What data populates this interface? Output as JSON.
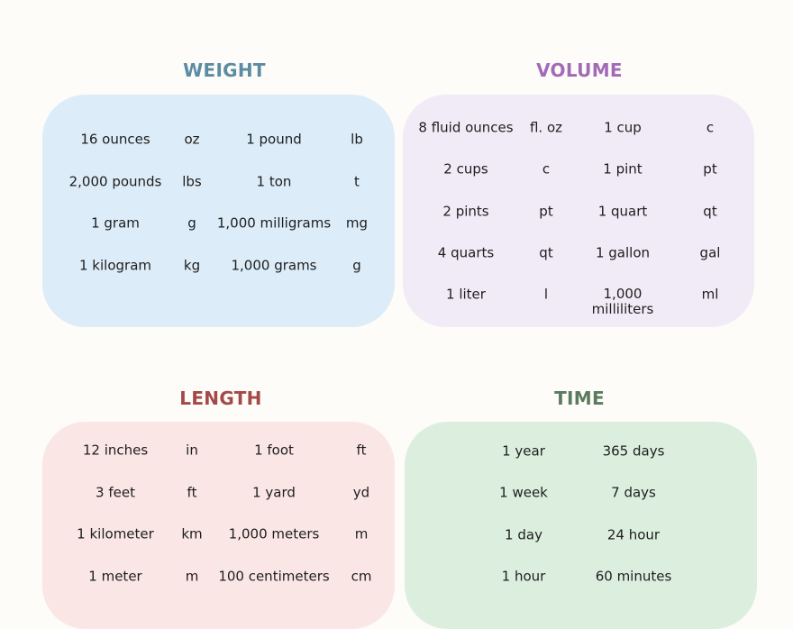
{
  "colors": {
    "background": "#fdfcf8"
  },
  "sections": [
    {
      "title": "WEIGHT",
      "title_color": "#5b8ca3",
      "box_color": "#dcecf8",
      "rows": [
        [
          "16 ounces",
          "oz",
          "1 pound",
          "lb"
        ],
        [
          "2,000 pounds",
          "lbs",
          "1 ton",
          "t"
        ],
        [
          "1 gram",
          "g",
          "1,000 milligrams",
          "mg"
        ],
        [
          "1 kilogram",
          "kg",
          "1,000 grams",
          "g"
        ]
      ]
    },
    {
      "title": "VOLUME",
      "title_color": "#a16bb8",
      "box_color": "#f1ebf7",
      "rows": [
        [
          "8 fluid ounces",
          "fl. oz",
          "1 cup",
          "c"
        ],
        [
          "2 cups",
          "c",
          "1 pint",
          "pt"
        ],
        [
          "2 pints",
          "pt",
          "1 quart",
          "qt"
        ],
        [
          "4 quarts",
          "qt",
          "1 gallon",
          "gal"
        ],
        [
          "1 liter",
          "l",
          "1,000 milliliters",
          "ml"
        ]
      ]
    },
    {
      "title": "LENGTH",
      "title_color": "#a54848",
      "box_color": "#fbe6e6",
      "rows": [
        [
          "12 inches",
          "in",
          "1 foot",
          "ft"
        ],
        [
          "3 feet",
          "ft",
          "1 yard",
          "yd"
        ],
        [
          "1 kilometer",
          "km",
          "1,000 meters",
          "m"
        ],
        [
          "1 meter",
          "m",
          "100 centimeters",
          "cm"
        ]
      ]
    },
    {
      "title": "TIME",
      "title_color": "#5b7b5e",
      "box_color": "#dcefdf",
      "rows": [
        [
          "1 year",
          "365 days"
        ],
        [
          "1 week",
          "7 days"
        ],
        [
          "1 day",
          "24 hour"
        ],
        [
          "1 hour",
          "60 minutes"
        ]
      ]
    }
  ]
}
